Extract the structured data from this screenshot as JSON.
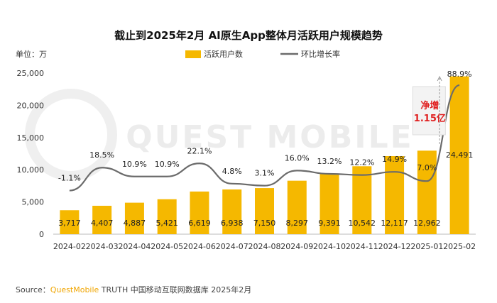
{
  "chart_data": {
    "type": "bar",
    "title": "截止到2025年2月 AI原生App整体月活跃用户规模趋势",
    "unit_label": "单位：万",
    "categories": [
      "2024-02",
      "2024-03",
      "2024-04",
      "2024-05",
      "2024-06",
      "2024-07",
      "2024-08",
      "2024-09",
      "2024-10",
      "2024-11",
      "2024-12",
      "2025-01",
      "2025-02"
    ],
    "series": [
      {
        "name": "活跃用户数",
        "type": "bar",
        "color": "#f5b800",
        "values": [
          3717,
          4407,
          4887,
          5421,
          6619,
          6938,
          7150,
          8297,
          9391,
          10542,
          12117,
          12962,
          24491
        ],
        "labels": [
          "3,717",
          "4,407",
          "4,887",
          "5,421",
          "6,619",
          "6,938",
          "7,150",
          "8,297",
          "9,391",
          "10,542",
          "12,117",
          "12,962",
          "24,491"
        ]
      },
      {
        "name": "环比增长率",
        "type": "line",
        "color": "#6b6b6b",
        "values": [
          -1.1,
          18.5,
          10.9,
          10.9,
          22.1,
          4.8,
          3.1,
          16.0,
          13.2,
          12.2,
          14.9,
          7.0,
          88.9
        ],
        "labels": [
          "-1.1%",
          "18.5%",
          "10.9%",
          "10.9%",
          "22.1%",
          "4.8%",
          "3.1%",
          "16.0%",
          "13.2%",
          "12.2%",
          "14.9%",
          "7.0%",
          "88.9%"
        ]
      }
    ],
    "y_ticks": [
      "0",
      "5,000",
      "10,000",
      "15,000",
      "20,000",
      "25,000"
    ],
    "ylim": [
      0,
      25000
    ],
    "legend_position": "top",
    "annotation": {
      "line1": "净增",
      "line2": "1.15亿",
      "color": "#e02020"
    },
    "grid": false
  },
  "source": {
    "prefix": "Source：",
    "brand": "QuestMobile",
    "rest": " TRUTH 中国移动互联网数据库 2025年2月",
    "brand_color": "#f0a500"
  },
  "watermark": "QUEST MOBILE"
}
